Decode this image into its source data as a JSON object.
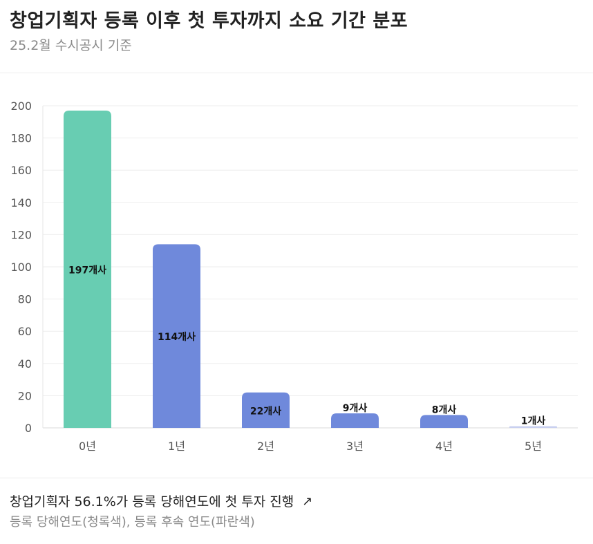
{
  "header": {
    "title": "창업기획자 등록 이후 첫 투자까지 소요 기간 분포",
    "subtitle": "25.2월 수시공시 기준"
  },
  "footer": {
    "headline": "창업기획자 56.1%가 등록 당해연도에 첫 투자 진행",
    "link_icon": "arrow-up-right-icon",
    "note": "등록 당해연도(청록색), 등록 후속 연도(파란색)"
  },
  "chart_data": {
    "type": "bar",
    "categories": [
      "0년",
      "1년",
      "2년",
      "3년",
      "4년",
      "5년"
    ],
    "values": [
      197,
      114,
      22,
      9,
      8,
      1
    ],
    "data_labels": [
      "197개사",
      "114개사",
      "22개사",
      "9개사",
      "8개사",
      "1개사"
    ],
    "bar_colors": [
      "#68CDB2",
      "#6F89DB",
      "#6F89DB",
      "#6F89DB",
      "#6F89DB",
      "#C9D0F0"
    ],
    "y_ticks": [
      0,
      20,
      40,
      60,
      80,
      100,
      120,
      140,
      160,
      180,
      200
    ],
    "ylim": [
      0,
      200
    ],
    "grid": true,
    "xlabel": "",
    "ylabel": ""
  }
}
